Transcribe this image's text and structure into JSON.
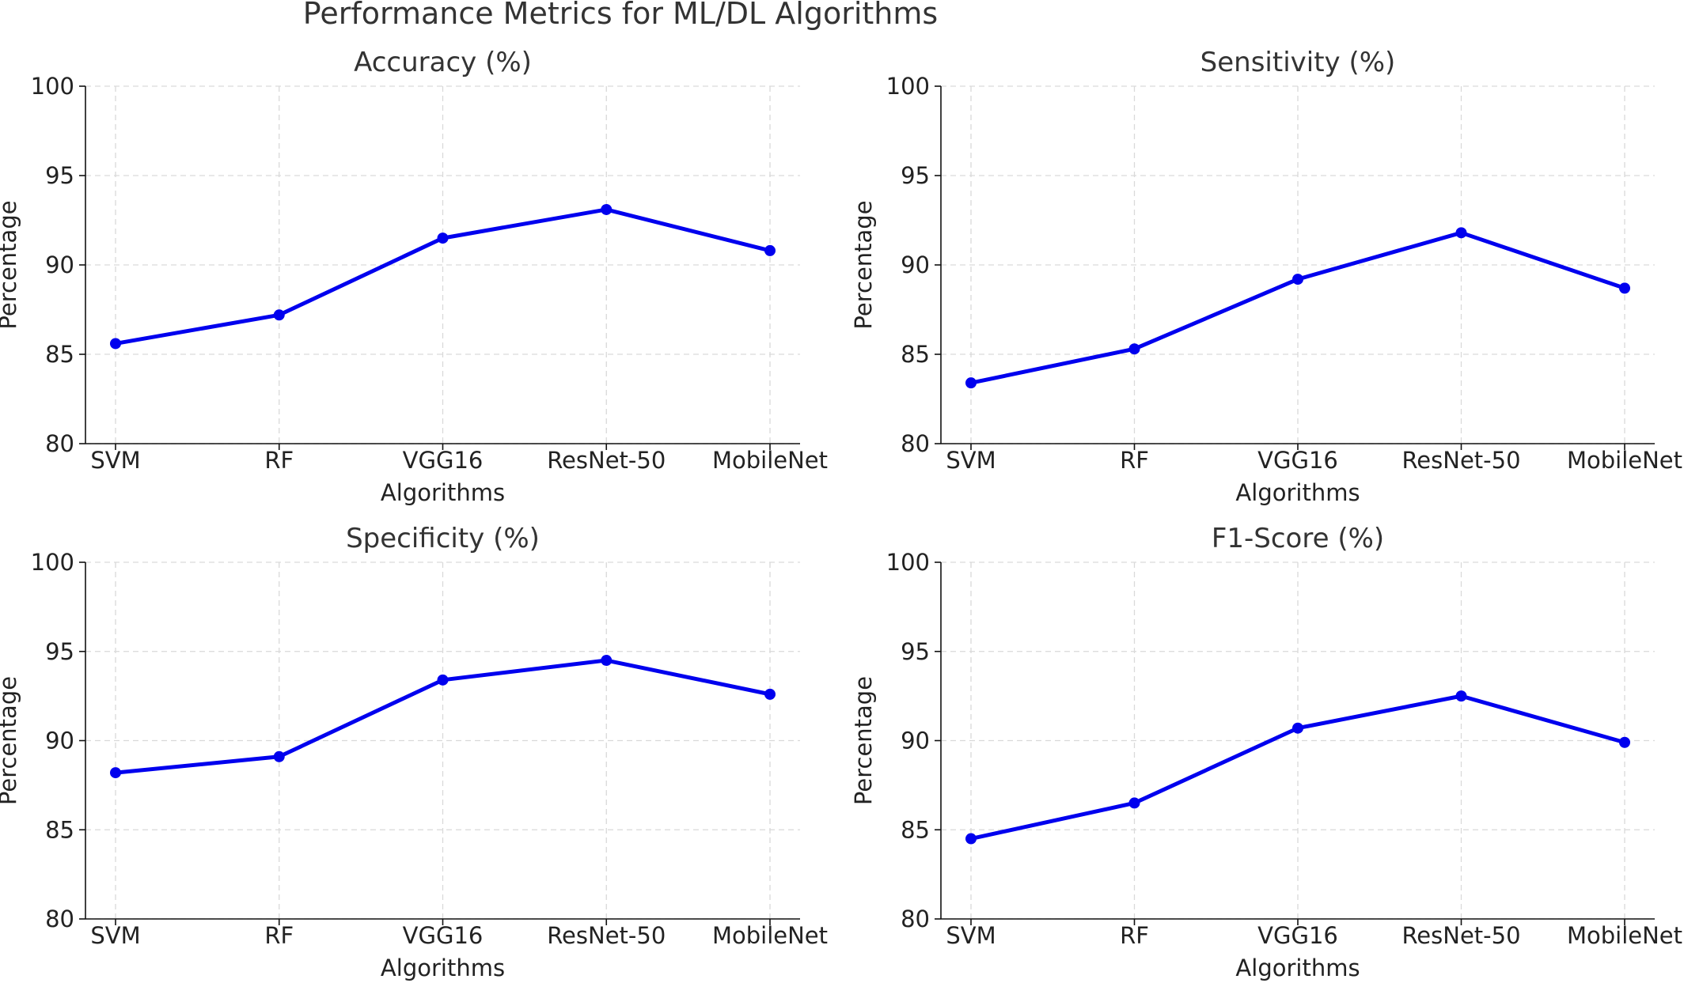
{
  "figure": {
    "title": "Performance Metrics for ML/DL Algorithms"
  },
  "chart_data": [
    {
      "type": "line",
      "title": "Accuracy (%)",
      "xlabel": "Algorithms",
      "ylabel": "Percentage",
      "categories": [
        "SVM",
        "RF",
        "VGG16",
        "ResNet-50",
        "MobileNet"
      ],
      "ylim": [
        80,
        100
      ],
      "yticks": [
        80,
        85,
        90,
        95,
        100
      ],
      "grid": true,
      "series": [
        {
          "values": [
            85.6,
            87.2,
            91.5,
            93.1,
            90.8
          ],
          "color": "#0000ee"
        }
      ]
    },
    {
      "type": "line",
      "title": "Sensitivity (%)",
      "xlabel": "Algorithms",
      "ylabel": "Percentage",
      "categories": [
        "SVM",
        "RF",
        "VGG16",
        "ResNet-50",
        "MobileNet"
      ],
      "ylim": [
        80,
        100
      ],
      "yticks": [
        80,
        85,
        90,
        95,
        100
      ],
      "grid": true,
      "series": [
        {
          "values": [
            83.4,
            85.3,
            89.2,
            91.8,
            88.7
          ],
          "color": "#0000ee"
        }
      ]
    },
    {
      "type": "line",
      "title": "Specificity (%)",
      "xlabel": "Algorithms",
      "ylabel": "Percentage",
      "categories": [
        "SVM",
        "RF",
        "VGG16",
        "ResNet-50",
        "MobileNet"
      ],
      "ylim": [
        80,
        100
      ],
      "yticks": [
        80,
        85,
        90,
        95,
        100
      ],
      "grid": true,
      "series": [
        {
          "values": [
            88.2,
            89.1,
            93.4,
            94.5,
            92.6
          ],
          "color": "#0000ee"
        }
      ]
    },
    {
      "type": "line",
      "title": "F1-Score (%)",
      "xlabel": "Algorithms",
      "ylabel": "Percentage",
      "categories": [
        "SVM",
        "RF",
        "VGG16",
        "ResNet-50",
        "MobileNet"
      ],
      "ylim": [
        80,
        100
      ],
      "yticks": [
        80,
        85,
        90,
        95,
        100
      ],
      "grid": true,
      "series": [
        {
          "values": [
            84.5,
            86.5,
            90.7,
            92.5,
            89.9
          ],
          "color": "#0000ee"
        }
      ]
    }
  ]
}
